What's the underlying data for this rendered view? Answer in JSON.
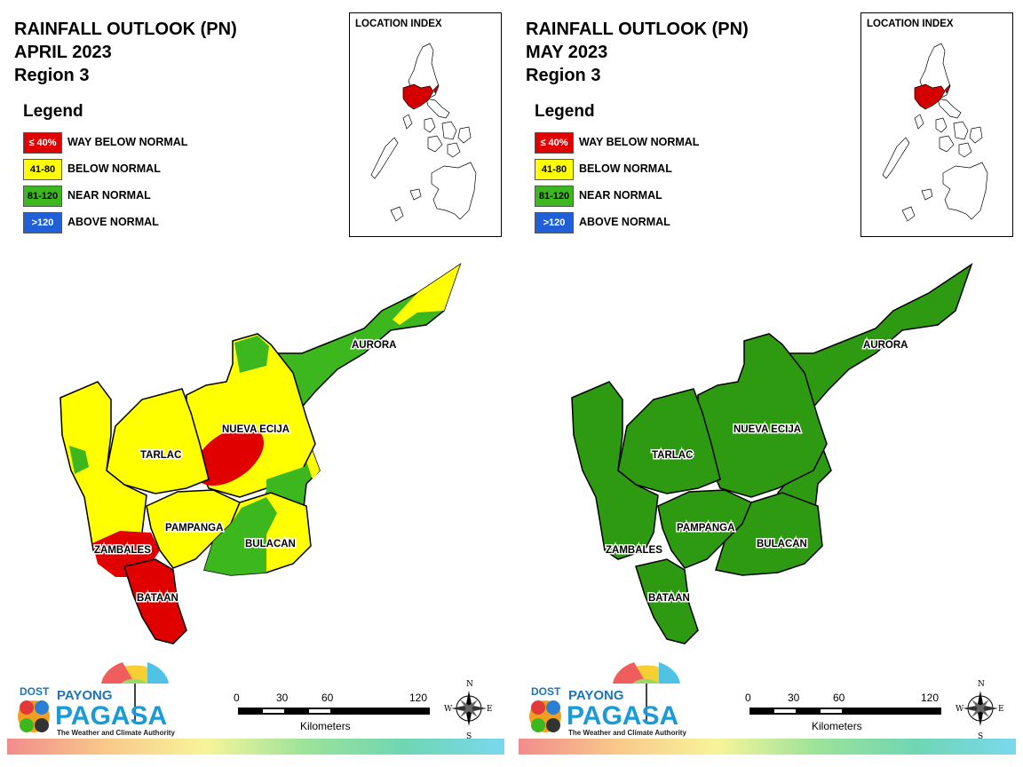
{
  "panels": [
    {
      "title": "RAINFALL OUTLOOK (PN)",
      "month": "APRIL 2023",
      "region": "Region 3",
      "legend": {
        "title": "Legend",
        "items": [
          {
            "range": "≤ 40%",
            "label": "WAY BELOW NORMAL",
            "color": "#e00000"
          },
          {
            "range": "41-80",
            "label": "BELOW NORMAL",
            "color": "#ffff00"
          },
          {
            "range": "81-120",
            "label": "NEAR NORMAL",
            "color": "#3cb81e"
          },
          {
            "range": ">120",
            "label": "ABOVE NORMAL",
            "color": "#1f5fd8"
          }
        ]
      },
      "index_title": "LOCATION INDEX",
      "provinces": [
        {
          "name": "AURORA",
          "category": "NEAR NORMAL"
        },
        {
          "name": "NUEVA ECIJA",
          "category": "BELOW NORMAL"
        },
        {
          "name": "TARLAC",
          "category": "BELOW NORMAL"
        },
        {
          "name": "PAMPANGA",
          "category": "BELOW NORMAL"
        },
        {
          "name": "BULACAN",
          "category": "NEAR NORMAL"
        },
        {
          "name": "ZAMBALES",
          "category": "BELOW NORMAL"
        },
        {
          "name": "BATAAN",
          "category": "WAY BELOW NORMAL"
        }
      ],
      "scale": {
        "ticks": [
          "0",
          "30",
          "60",
          "120"
        ],
        "unit": "Kilometers"
      },
      "logo": {
        "dost": "DOST",
        "payong": "PAYONG",
        "pagasa": "PAGASA",
        "tagline": "The Weather and Climate Authority"
      },
      "compass": {
        "n": "N",
        "s": "S",
        "e": "E",
        "w": "W"
      }
    },
    {
      "title": "RAINFALL OUTLOOK (PN)",
      "month": "MAY 2023",
      "region": "Region 3",
      "legend": {
        "title": "Legend",
        "items": [
          {
            "range": "≤ 40%",
            "label": "WAY BELOW NORMAL",
            "color": "#e00000"
          },
          {
            "range": "41-80",
            "label": "BELOW NORMAL",
            "color": "#ffff00"
          },
          {
            "range": "81-120",
            "label": "NEAR NORMAL",
            "color": "#3cb81e"
          },
          {
            "range": ">120",
            "label": "ABOVE NORMAL",
            "color": "#1f5fd8"
          }
        ]
      },
      "index_title": "LOCATION INDEX",
      "provinces": [
        {
          "name": "AURORA",
          "category": "NEAR NORMAL"
        },
        {
          "name": "NUEVA ECIJA",
          "category": "NEAR NORMAL"
        },
        {
          "name": "TARLAC",
          "category": "NEAR NORMAL"
        },
        {
          "name": "PAMPANGA",
          "category": "NEAR NORMAL"
        },
        {
          "name": "BULACAN",
          "category": "NEAR NORMAL"
        },
        {
          "name": "ZAMBALES",
          "category": "NEAR NORMAL"
        },
        {
          "name": "BATAAN",
          "category": "NEAR NORMAL"
        }
      ],
      "scale": {
        "ticks": [
          "0",
          "30",
          "60",
          "120"
        ],
        "unit": "Kilometers"
      },
      "logo": {
        "dost": "DOST",
        "payong": "PAYONG",
        "pagasa": "PAGASA",
        "tagline": "The Weather and Climate Authority"
      },
      "compass": {
        "n": "N",
        "s": "S",
        "e": "E",
        "w": "W"
      }
    }
  ],
  "colors": {
    "way_below": "#e00000",
    "below": "#ffff00",
    "near": "#3cb81e",
    "dark_green": "#2e9a12",
    "above": "#1f5fd8",
    "highlight": "#d40000"
  }
}
